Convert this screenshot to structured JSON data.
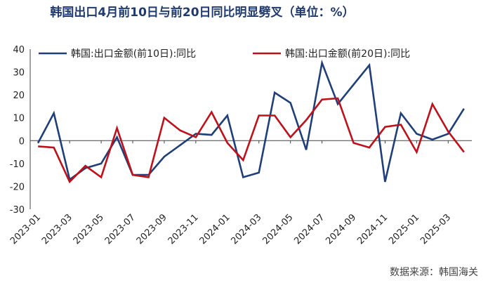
{
  "title": "韩国出口4月前10日与前20日同比明显劈叉（单位：%）",
  "source": "数据来源：韩国海关",
  "colors": {
    "series1": "#1f3f7a",
    "series2": "#c0101a",
    "title": "#1f3a6e"
  },
  "chart_data": {
    "type": "line",
    "title": "韩国出口4月前10日与前20日同比明显劈叉（单位：%）",
    "xlabel": "",
    "ylabel": "",
    "ylim": [
      -30,
      40
    ],
    "yticks": [
      -30,
      -20,
      -10,
      0,
      10,
      20,
      30,
      40
    ],
    "grid": false,
    "legend_position": "top",
    "x": [
      "2023-01",
      "2023-02",
      "2023-03",
      "2023-04",
      "2023-05",
      "2023-06",
      "2023-07",
      "2023-08",
      "2023-09",
      "2023-10",
      "2023-11",
      "2023-12",
      "2024-01",
      "2024-02",
      "2024-03",
      "2024-04",
      "2024-05",
      "2024-06",
      "2024-07",
      "2024-08",
      "2024-09",
      "2024-10",
      "2024-11",
      "2024-12",
      "2025-01",
      "2025-02",
      "2025-03",
      "2025-04"
    ],
    "x_tick_labels": [
      "2023-01",
      "2023-03",
      "2023-05",
      "2023-07",
      "2023-09",
      "2023-11",
      "2024-01",
      "2024-03",
      "2024-05",
      "2024-07",
      "2024-09",
      "2024-11",
      "2025-01",
      "2025-03"
    ],
    "series": [
      {
        "name": "韩国:出口金额(前10日):同比",
        "values": [
          -1,
          12,
          -17,
          -12,
          -10,
          1.5,
          -15,
          -15,
          -7,
          -2,
          3,
          2.5,
          11,
          -16,
          -14,
          21,
          16.5,
          -4,
          34,
          16,
          24.5,
          33,
          -18,
          12,
          3,
          0.5,
          3,
          14
        ]
      },
      {
        "name": "韩国:出口金额(前20日):同比",
        "values": [
          -2.5,
          -3,
          -18,
          -11,
          -16,
          5.5,
          -15,
          -16,
          10,
          4.5,
          1.5,
          12.5,
          -1,
          -8.5,
          11,
          11,
          1.5,
          9,
          18,
          18.5,
          -1,
          -3,
          6,
          7,
          -5,
          16,
          4,
          -5
        ]
      }
    ]
  }
}
